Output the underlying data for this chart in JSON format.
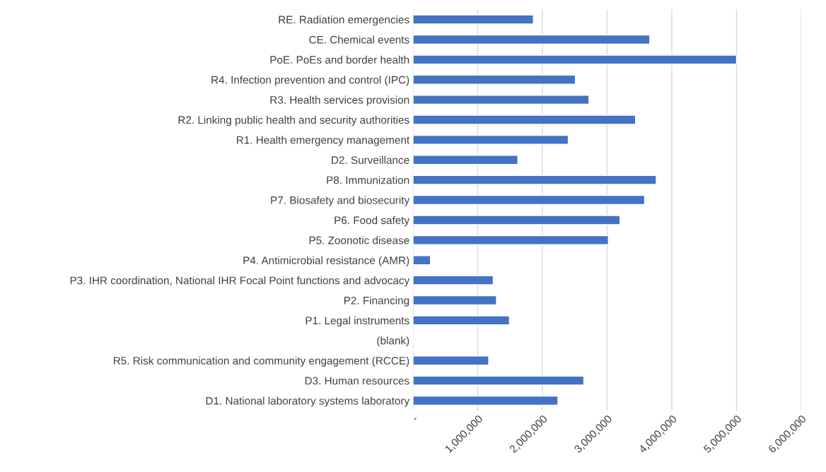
{
  "chart_data": {
    "type": "bar",
    "orientation": "horizontal",
    "categories": [
      "RE. Radiation emergencies",
      "CE. Chemical events",
      "PoE. PoEs and border health",
      "R4. Infection prevention and control (IPC)",
      "R3. Health services provision",
      "R2. Linking public health and security authorities",
      "R1. Health emergency management",
      "D2. Surveillance",
      "P8. Immunization",
      "P7. Biosafety and biosecurity",
      "P6. Food safety",
      "P5. Zoonotic disease",
      "P4. Antimicrobial resistance (AMR)",
      "P3. IHR coordination, National IHR Focal Point functions and advocacy",
      "P2. Financing",
      "P1. Legal instruments",
      "(blank)",
      "R5. Risk communication and community engagement (RCCE)",
      "D3. Human resources",
      "D1. National laboratory systems laboratory"
    ],
    "values": [
      1860000,
      3660000,
      5000000,
      2510000,
      2720000,
      3440000,
      2400000,
      1620000,
      3760000,
      3580000,
      3200000,
      3020000,
      270000,
      1240000,
      1290000,
      1490000,
      null,
      1170000,
      2640000,
      2240000
    ],
    "color": "#4472c4",
    "xlim": [
      0,
      6000000
    ],
    "xticks": [
      {
        "value": 0,
        "label": "-"
      },
      {
        "value": 1000000,
        "label": "1,000,000"
      },
      {
        "value": 2000000,
        "label": "2,000,000"
      },
      {
        "value": 3000000,
        "label": "3,000,000"
      },
      {
        "value": 4000000,
        "label": "4,000,000"
      },
      {
        "value": 5000000,
        "label": "5,000,000"
      },
      {
        "value": 6000000,
        "label": "6,000,000"
      }
    ],
    "grid": "x"
  }
}
